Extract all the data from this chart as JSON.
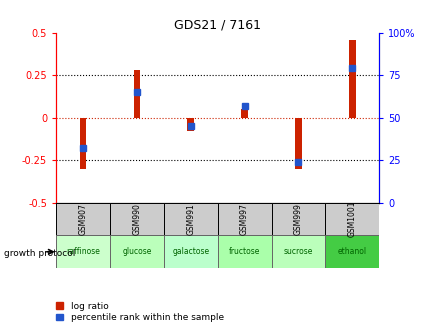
{
  "title": "GDS21 / 7161",
  "samples": [
    "GSM907",
    "GSM990",
    "GSM991",
    "GSM997",
    "GSM999",
    "GSM1001"
  ],
  "protocols": [
    "raffinose",
    "glucose",
    "galactose",
    "fructose",
    "sucrose",
    "ethanol"
  ],
  "log_ratios": [
    -0.3,
    0.28,
    -0.08,
    0.05,
    -0.3,
    0.46
  ],
  "percentile_ranks": [
    32,
    65,
    45,
    57,
    24,
    79
  ],
  "ylim_left": [
    -0.5,
    0.5
  ],
  "ylim_right": [
    0,
    100
  ],
  "bar_color": "#cc2200",
  "dot_color": "#2255cc",
  "bg_color": "#ffffff",
  "zero_line_color": "#cc2200",
  "protocol_colors": [
    "#ccffcc",
    "#bbffbb",
    "#bbffcc",
    "#aaffaa",
    "#bbffbb",
    "#44cc44"
  ],
  "sample_box_color": "#cccccc",
  "left_ticks": [
    -0.5,
    -0.25,
    0,
    0.25,
    0.5
  ],
  "right_ticks": [
    0,
    25,
    50,
    75,
    100
  ],
  "left_tick_labels": [
    "-0.5",
    "-0.25",
    "0",
    "0.25",
    "0.5"
  ],
  "right_tick_labels": [
    "0",
    "25",
    "50",
    "75",
    "100%"
  ],
  "legend_log_ratio": "log ratio",
  "legend_percentile": "percentile rank within the sample",
  "growth_protocol_label": "growth protocol",
  "bar_width": 0.12
}
